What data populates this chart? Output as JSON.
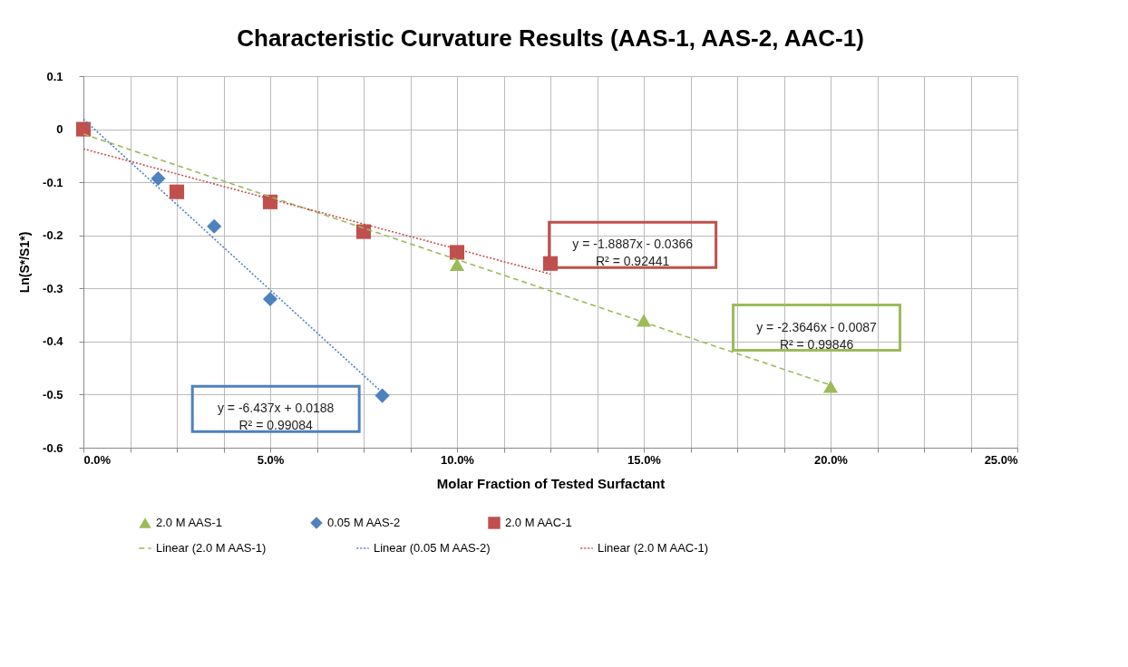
{
  "chart_data": {
    "type": "scatter",
    "title": "Characteristic Curvature Results (AAS-1, AAS-2, AAC-1)",
    "xlabel": "Molar Fraction of Tested Surfactant",
    "ylabel": "Ln(S*/S1*)",
    "xlim": [
      0,
      0.25
    ],
    "ylim": [
      -0.6,
      0.1
    ],
    "xticks": [
      {
        "value": 0,
        "label": "0.0%"
      },
      {
        "value": 0.0125,
        "label": null
      },
      {
        "value": 0.025,
        "label": null
      },
      {
        "value": 0.0375,
        "label": null
      },
      {
        "value": 0.05,
        "label": "5.0%"
      },
      {
        "value": 0.0625,
        "label": null
      },
      {
        "value": 0.075,
        "label": null
      },
      {
        "value": 0.0875,
        "label": null
      },
      {
        "value": 0.1,
        "label": "10.0%"
      },
      {
        "value": 0.1125,
        "label": null
      },
      {
        "value": 0.125,
        "label": null
      },
      {
        "value": 0.1375,
        "label": null
      },
      {
        "value": 0.15,
        "label": "15.0%"
      },
      {
        "value": 0.1625,
        "label": null
      },
      {
        "value": 0.175,
        "label": null
      },
      {
        "value": 0.1875,
        "label": null
      },
      {
        "value": 0.2,
        "label": "20.0%"
      },
      {
        "value": 0.2125,
        "label": null
      },
      {
        "value": 0.225,
        "label": null
      },
      {
        "value": 0.2375,
        "label": null
      },
      {
        "value": 0.25,
        "label": "25.0%"
      }
    ],
    "yticks": [
      -0.6,
      -0.5,
      -0.4,
      -0.3,
      -0.2,
      -0.1,
      0,
      0.1
    ],
    "grid": true,
    "legend": "bottom",
    "series": [
      {
        "name": "2.0 M AAS-1",
        "marker": "triangle",
        "color": "#9bbb59",
        "x": [
          0.1,
          0.15,
          0.2
        ],
        "values": [
          -0.255,
          -0.36,
          -0.485
        ]
      },
      {
        "name": "0.05 M AAS-2",
        "marker": "diamond",
        "color": "#4f81bd",
        "x": [
          0.02,
          0.035,
          0.05,
          0.08
        ],
        "values": [
          -0.093,
          -0.183,
          -0.32,
          -0.502
        ]
      },
      {
        "name": "2.0 M AAC-1",
        "marker": "square",
        "color": "#c0504d",
        "x": [
          0,
          0.025,
          0.05,
          0.075,
          0.1,
          0.125
        ],
        "values": [
          0,
          -0.118,
          -0.137,
          -0.193,
          -0.232,
          -0.253
        ]
      },
      {
        "name": "Linear (2.0 M AAS-1)",
        "type": "line",
        "line_style": "dashed",
        "color": "#9bbb59",
        "x": [
          0,
          0.2
        ],
        "values": [
          -0.009,
          -0.482
        ]
      },
      {
        "name": "Linear (0.05 M AAS-2)",
        "type": "line",
        "line_style": "dotted",
        "color": "#4f81bd",
        "x": [
          0,
          0.08
        ],
        "values": [
          0.019,
          -0.496
        ]
      },
      {
        "name": "Linear (2.0 M AAC-1)",
        "type": "line",
        "line_style": "dotted",
        "color": "#c0504d",
        "x": [
          0,
          0.125
        ],
        "values": [
          -0.037,
          -0.273
        ]
      }
    ],
    "annotations": [
      "y = -2.3646x - 0.0087\nR² = 0.99846",
      "y = -6.437x + 0.0188\nR² = 0.99084",
      "y = -1.8887x - 0.0366\nR² = 0.92441"
    ]
  }
}
